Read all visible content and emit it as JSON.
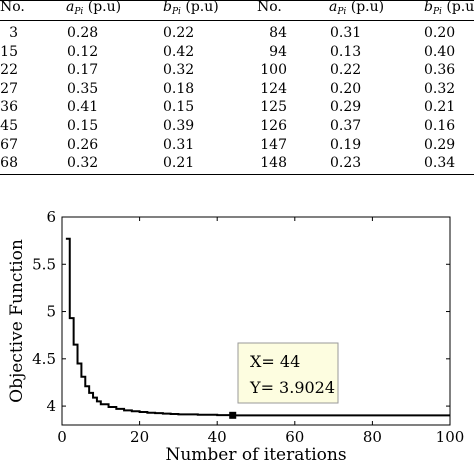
{
  "table": {
    "headers": {
      "no1": "No.",
      "a1_main": "a",
      "a1_sub": "Pi",
      "a1_unit": " (p.u)",
      "b1_main": "b",
      "b1_sub": "Pi",
      "b1_unit": " (p.u)",
      "no2": "No.",
      "a2_main": "a",
      "a2_sub": "Pi",
      "a2_unit": " (p.u)",
      "b2_main": "b",
      "b2_sub": "Pi",
      "b2_unit": " (p.u)"
    },
    "rows": [
      {
        "no1": "3",
        "a1": "0.28",
        "b1": "0.22",
        "no2": "84",
        "a2": "0.31",
        "b2": "0.20"
      },
      {
        "no1": "15",
        "a1": "0.12",
        "b1": "0.42",
        "no2": "94",
        "a2": "0.13",
        "b2": "0.40"
      },
      {
        "no1": "22",
        "a1": "0.17",
        "b1": "0.32",
        "no2": "100",
        "a2": "0.22",
        "b2": "0.36"
      },
      {
        "no1": "27",
        "a1": "0.35",
        "b1": "0.18",
        "no2": "124",
        "a2": "0.20",
        "b2": "0.32"
      },
      {
        "no1": "36",
        "a1": "0.41",
        "b1": "0.15",
        "no2": "125",
        "a2": "0.29",
        "b2": "0.21"
      },
      {
        "no1": "45",
        "a1": "0.15",
        "b1": "0.39",
        "no2": "126",
        "a2": "0.37",
        "b2": "0.16"
      },
      {
        "no1": "67",
        "a1": "0.26",
        "b1": "0.31",
        "no2": "147",
        "a2": "0.19",
        "b2": "0.29"
      },
      {
        "no1": "68",
        "a1": "0.32",
        "b1": "0.21",
        "no2": "148",
        "a2": "0.23",
        "b2": "0.34"
      }
    ]
  },
  "chart_data": {
    "type": "line",
    "title": "",
    "xlabel": "Number of iterations",
    "ylabel": "Objective Function",
    "xlim": [
      0,
      100
    ],
    "ylim": [
      3.8,
      6
    ],
    "xticks": [
      "0",
      "20",
      "40",
      "60",
      "80",
      "100"
    ],
    "yticks": [
      "4",
      "4.5",
      "5",
      "5.5",
      "6"
    ],
    "grid": false,
    "series": [
      {
        "x": [
          1,
          2,
          3,
          4,
          5,
          6,
          7,
          8,
          9,
          10,
          12,
          14,
          16,
          18,
          20,
          22,
          24,
          26,
          28,
          30,
          35,
          40,
          44,
          50,
          60,
          70,
          80,
          90,
          100
        ],
        "y": [
          5.77,
          4.93,
          4.65,
          4.45,
          4.31,
          4.21,
          4.14,
          4.09,
          4.05,
          4.02,
          3.99,
          3.97,
          3.955,
          3.945,
          3.937,
          3.93,
          3.925,
          3.92,
          3.916,
          3.913,
          3.908,
          3.905,
          3.9024,
          3.9024,
          3.9024,
          3.9024,
          3.9024,
          3.9024,
          3.9024
        ]
      }
    ],
    "datatip": {
      "x_label": "X= 44",
      "y_label": "Y= 3.9024",
      "x": 44,
      "y": 3.9024
    },
    "colors": {
      "line": "#000000",
      "tip_bg": "#fdfde0",
      "tip_border": "#999999"
    }
  }
}
